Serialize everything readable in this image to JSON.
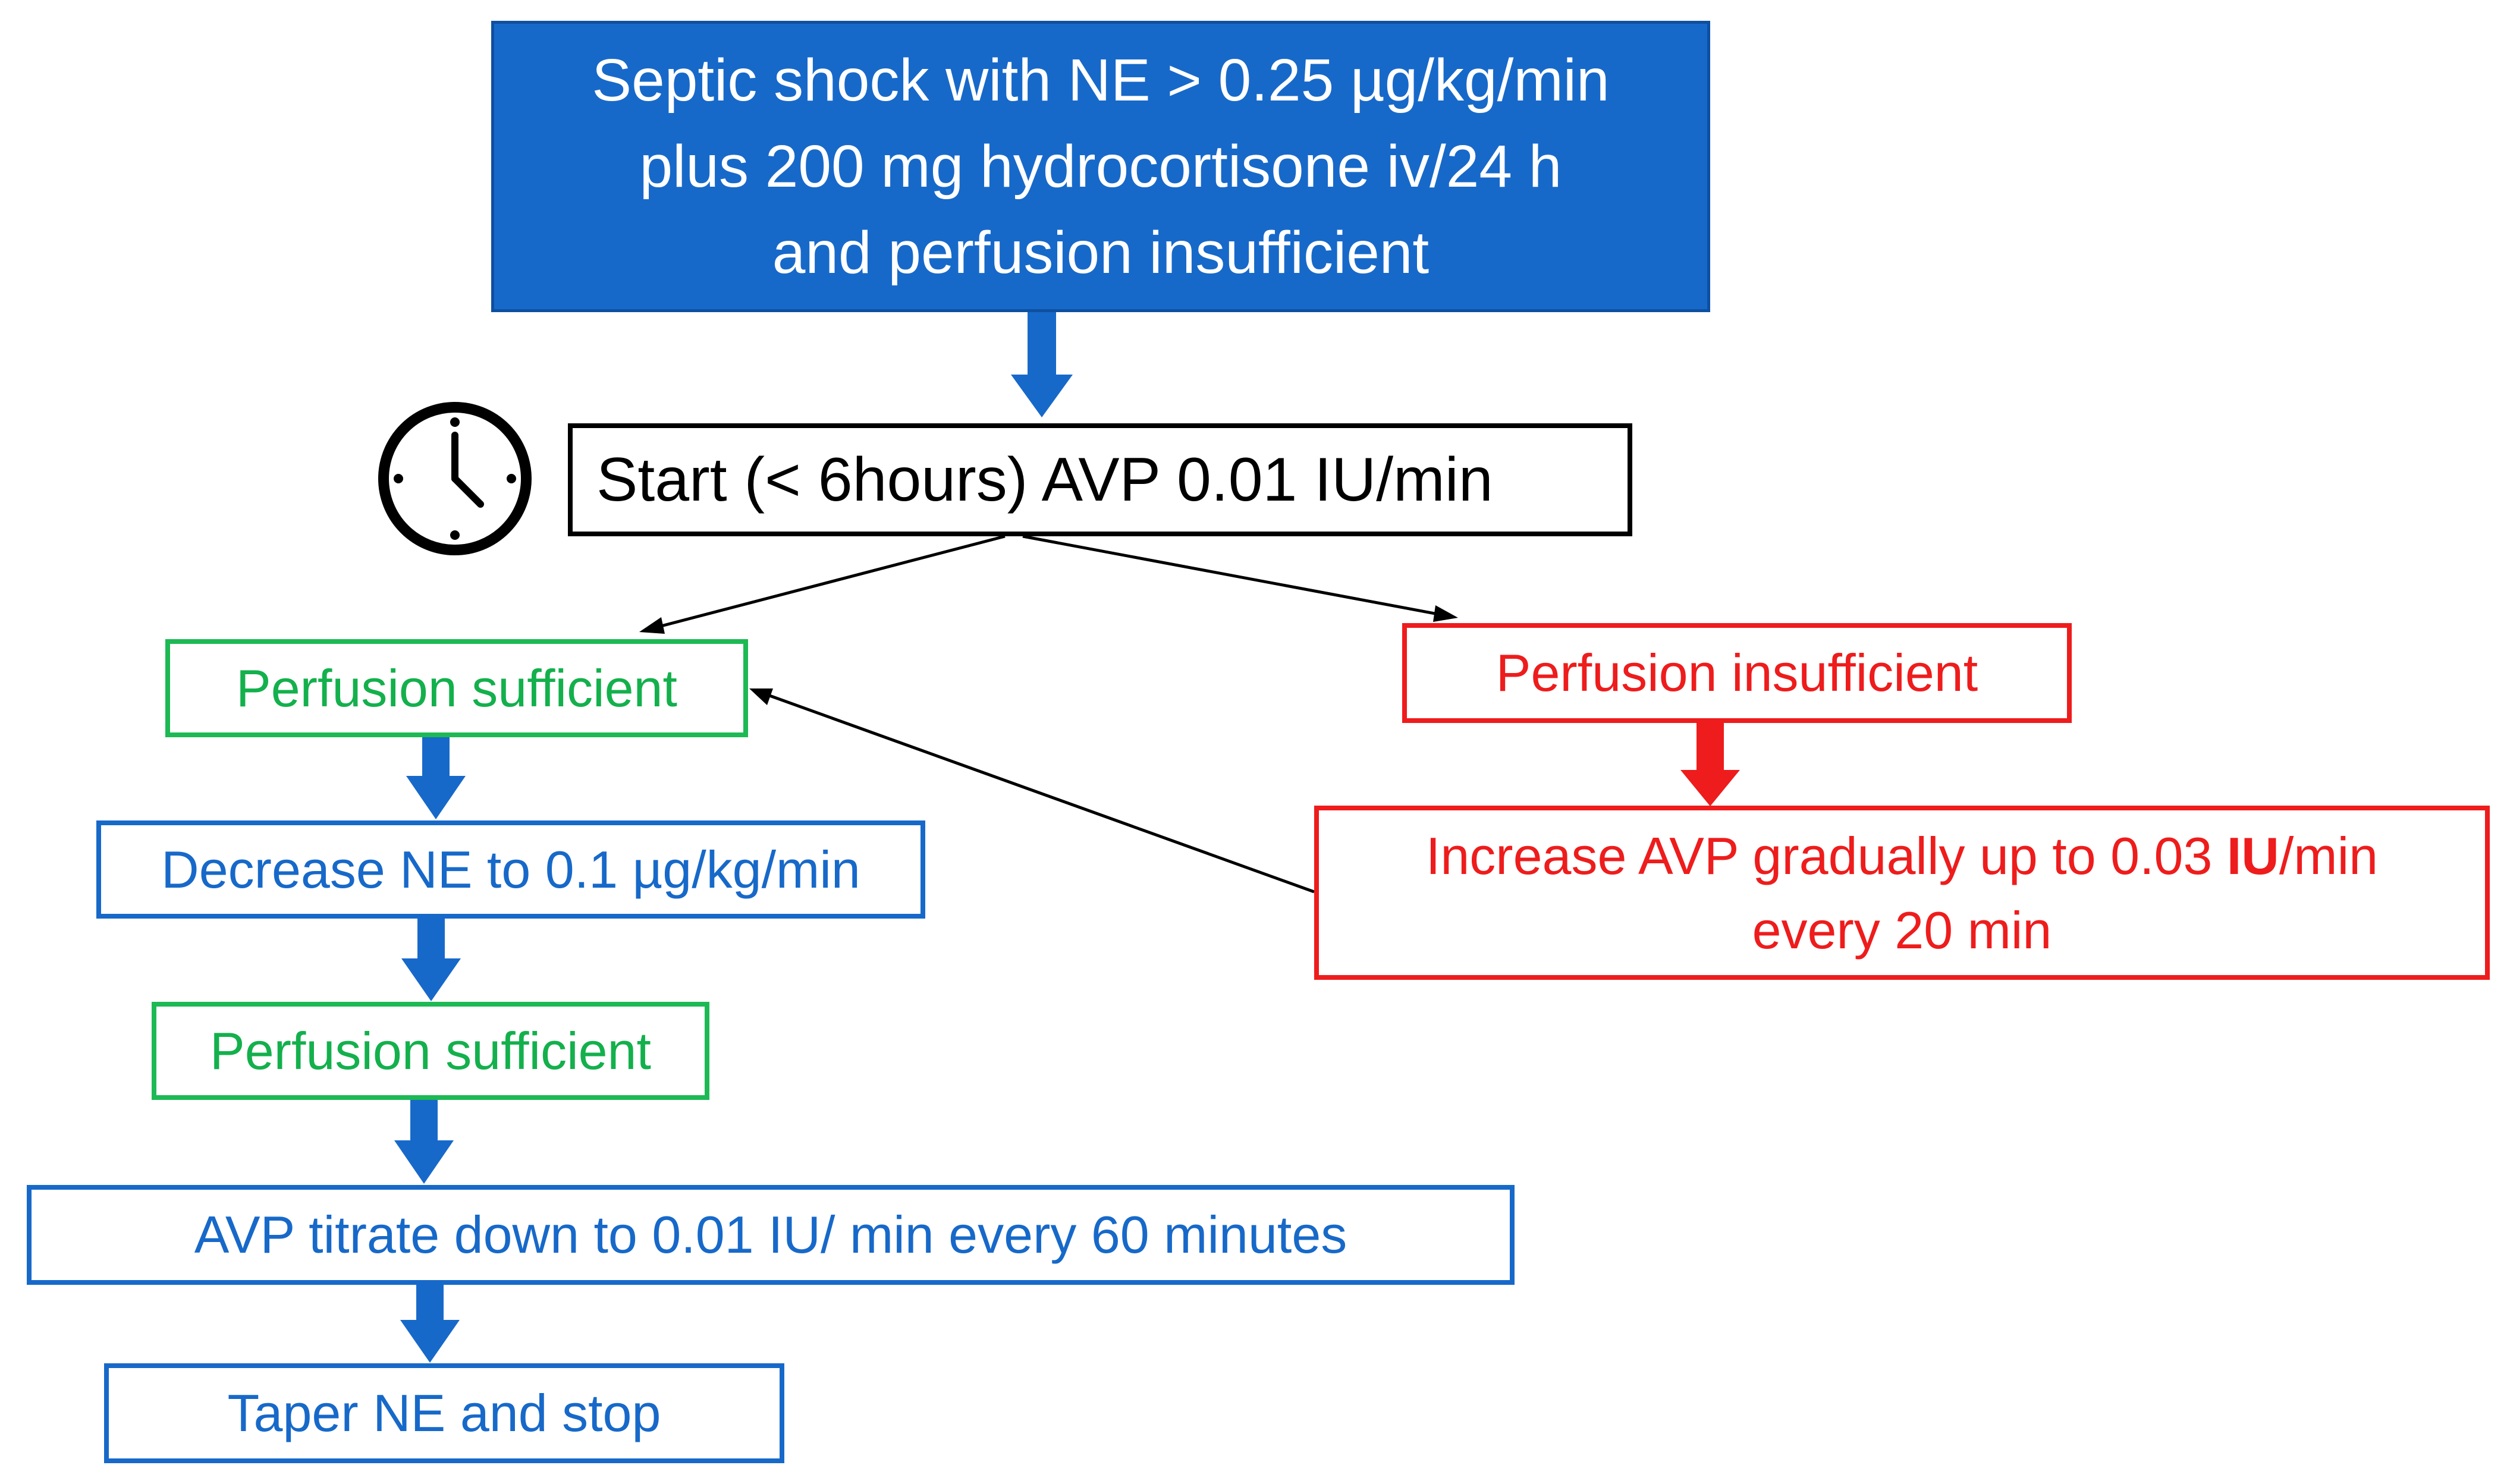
{
  "nodes": {
    "top": {
      "lines": [
        "Septic shock with NE > 0.25 µg/kg/min",
        "plus 200 mg hydrocortisone iv/24 h",
        "and perfusion insufficient"
      ]
    },
    "start": {
      "label": "Start (< 6hours) AVP 0.01 IU/min"
    },
    "perfusion_sufficient_1": {
      "label": "Perfusion sufficient"
    },
    "decrease_ne": {
      "label": "Decrease NE to 0.1 µg/kg/min"
    },
    "perfusion_sufficient_2": {
      "label": "Perfusion sufficient"
    },
    "avp_titrate": {
      "label": "AVP titrate down to 0.01 IU/ min every 60 minutes"
    },
    "taper_ne": {
      "label": "Taper NE and stop"
    },
    "perfusion_insufficient": {
      "label": "Perfusion insufficient"
    },
    "increase_avp": {
      "line1_pre": "Increase AVP gradually up to 0.03 ",
      "line1_bold": "IU",
      "line1_post": "/min",
      "line2": "every 20 min"
    }
  },
  "icons": {
    "clock": "clock-icon"
  },
  "colors": {
    "blue": "#1769c9",
    "green": "#13b04c",
    "red": "#ee1c1c",
    "black": "#000000"
  }
}
